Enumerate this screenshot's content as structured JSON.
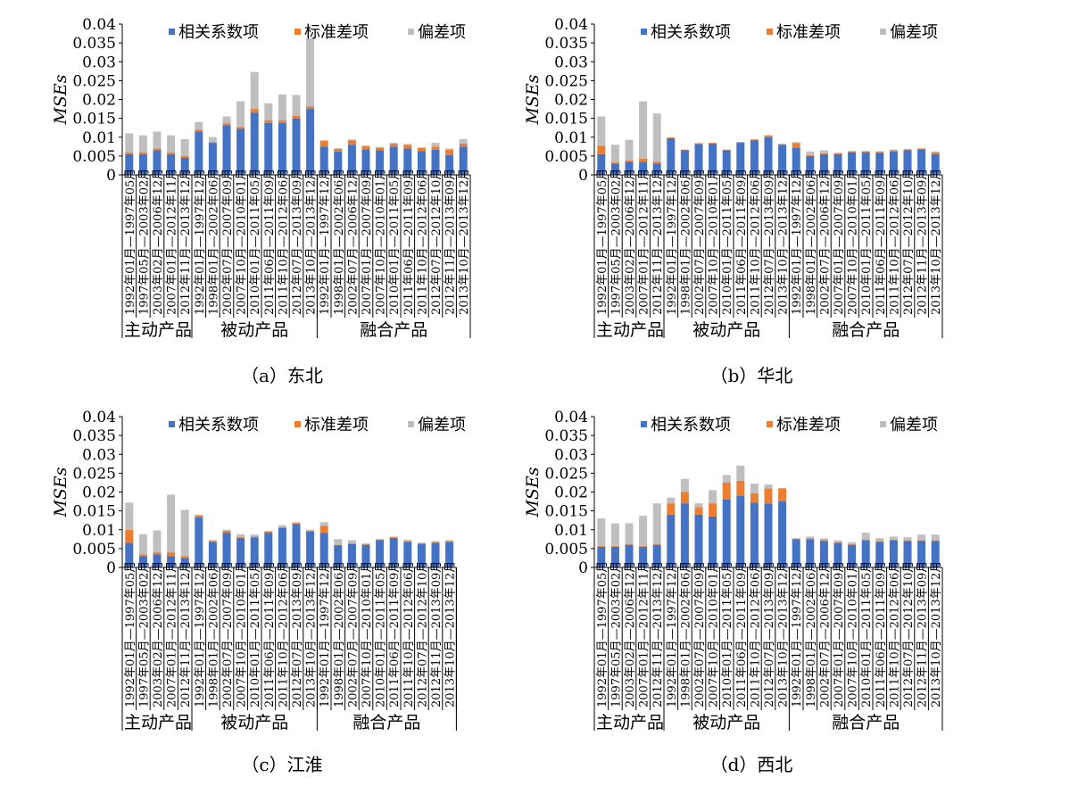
{
  "legend": [
    "相关系数项",
    "标准差项",
    "偏差项"
  ],
  "colors": {
    "corr": "#4472C4",
    "std": "#ED7D31",
    "bias": "#BFBFBF"
  },
  "y_axis_label": "MSEs",
  "y_ticks": [
    "0",
    "0.005",
    "0.01",
    "0.015",
    "0.02",
    "0.025",
    "0.03",
    "0.035",
    "0.04"
  ],
  "groups": [
    "主动产品",
    "被动产品",
    "融合产品"
  ],
  "chart_data": [
    {
      "type": "bar",
      "stacked": true,
      "caption": "（a）东北",
      "categories": [
        "1992年01月—1997年05月",
        "1997年05月—2003年02月",
        "2003年02月—2006年12月",
        "2007年01月—2012年11月",
        "2012年11月—2013年12月",
        "1992年01月—1997年12月",
        "1998年01月—2002年06月",
        "2002年07月—2007年09月",
        "2007年10月—2010年01月",
        "2010年01月—2011年05月",
        "2011年06月—2011年09月",
        "2011年10月—2012年06月",
        "2012年07月—2013年09月",
        "2013年10月—2013年12月",
        "1992年01月—1997年12月",
        "1998年01月—2002年06月",
        "2002年07月—2006年12月",
        "2007年01月—2007年09月",
        "2007年10月—2010年01月",
        "2010年01月—2011年05月",
        "2011年06月—2011年09月",
        "2011年10月—2012年06月",
        "2012年07月—2012年10月",
        "2012年11月—2013年09月",
        "2013年10月—2013年12月"
      ],
      "group_sizes": [
        5,
        9,
        11
      ],
      "ylim": [
        0,
        0.04
      ],
      "series": [
        {
          "name": "相关系数项",
          "values": [
            0.0055,
            0.0055,
            0.0065,
            0.0055,
            0.0045,
            0.0115,
            0.0085,
            0.0132,
            0.0122,
            0.0165,
            0.0138,
            0.0138,
            0.015,
            0.0175,
            0.0075,
            0.0062,
            0.008,
            0.0068,
            0.0065,
            0.0075,
            0.007,
            0.0063,
            0.0067,
            0.0052,
            0.0075
          ]
        },
        {
          "name": "标准差项",
          "values": [
            0.0005,
            0.0005,
            0.0005,
            0.0005,
            0.0005,
            0.0005,
            0.0002,
            0.0005,
            0.0005,
            0.001,
            0.0007,
            0.0007,
            0.0007,
            0.0007,
            0.0015,
            0.0007,
            0.0012,
            0.0008,
            0.0007,
            0.0008,
            0.001,
            0.0008,
            0.0008,
            0.0015,
            0.0008
          ]
        },
        {
          "name": "偏差项",
          "values": [
            0.005,
            0.0045,
            0.0045,
            0.0045,
            0.0045,
            0.002,
            0.0013,
            0.0018,
            0.0068,
            0.0098,
            0.0045,
            0.0068,
            0.0055,
            0.018,
            0.0002,
            0.0002,
            0.0002,
            0.0002,
            0.0002,
            0.0002,
            0.0002,
            0.0002,
            0.001,
            0.0003,
            0.0012
          ]
        }
      ]
    },
    {
      "type": "bar",
      "stacked": true,
      "caption": "（b）华北",
      "categories": [
        "1992年01月—1997年05月",
        "1997年05月—2003年02月",
        "2003年02月—2006年12月",
        "2007年01月—2012年11月",
        "2012年11月—2013年12月",
        "1992年01月—1997年12月",
        "1998年01月—2002年06月",
        "2002年07月—2007年09月",
        "2007年10月—2010年01月",
        "2010年01月—2011年05月",
        "2011年06月—2011年09月",
        "2011年10月—2012年06月",
        "2012年07月—2013年09月",
        "2013年10月—2013年12月",
        "1992年01月—1997年12月",
        "1998年01月—2002年06月",
        "2002年07月—2006年12月",
        "2007年01月—2007年09月",
        "2007年10月—2010年01月",
        "2010年01月—2011年05月",
        "2011年06月—2011年09月",
        "2011年10月—2012年06月",
        "2012年07月—2012年10月",
        "2012年11月—2013年09月",
        "2013年10月—2013年12月"
      ],
      "group_sizes": [
        5,
        9,
        11
      ],
      "ylim": [
        0,
        0.04
      ],
      "series": [
        {
          "name": "相关系数项",
          "values": [
            0.0055,
            0.003,
            0.0035,
            0.0035,
            0.003,
            0.0097,
            0.0065,
            0.0082,
            0.0083,
            0.0065,
            0.0085,
            0.0092,
            0.01,
            0.008,
            0.0072,
            0.005,
            0.0055,
            0.0055,
            0.006,
            0.006,
            0.0058,
            0.0062,
            0.0065,
            0.0068,
            0.0055
          ]
        },
        {
          "name": "标准差项",
          "values": [
            0.0022,
            0.0003,
            0.0003,
            0.0008,
            0.0005,
            0.0002,
            0.0002,
            0.0002,
            0.0002,
            0.0002,
            0.0002,
            0.0002,
            0.0005,
            0.0002,
            0.0012,
            0.0002,
            0.0002,
            0.0002,
            0.0002,
            0.0002,
            0.0003,
            0.0003,
            0.0003,
            0.0002,
            0.0005
          ]
        },
        {
          "name": "偏差项",
          "values": [
            0.0078,
            0.0047,
            0.0055,
            0.0152,
            0.0128,
            0.0,
            0.0,
            0.0,
            0.0,
            0.0,
            0.0,
            0.0,
            0.0,
            0.0,
            0.0003,
            0.001,
            0.0008,
            0.0002,
            0.0002,
            0.0002,
            0.0002,
            0.0002,
            0.0,
            0.0,
            0.0002
          ]
        }
      ]
    },
    {
      "type": "bar",
      "stacked": true,
      "caption": "（c）江淮",
      "categories": [
        "1992年01月—1997年05月",
        "1997年05月—2003年02月",
        "2003年02月—2006年12月",
        "2007年01月—2012年11月",
        "2012年11月—2013年12月",
        "1992年01月—1997年12月",
        "1998年01月—2002年06月",
        "2002年07月—2007年09月",
        "2007年10月—2010年01月",
        "2010年01月—2011年05月",
        "2011年06月—2011年09月",
        "2011年10月—2012年06月",
        "2012年07月—2013年09月",
        "2013年10月—2013年12月",
        "1992年01月—1997年12月",
        "1998年01月—2002年06月",
        "2002年07月—2007年09月",
        "2007年10月—2010年01月",
        "2010年01月—2011年05月",
        "2011年06月—2011年09月",
        "2011年10月—2012年06月",
        "2012年07月—2012年10月",
        "2012年11月—2013年09月",
        "2013年10月—2013年12月"
      ],
      "group_sizes": [
        5,
        9,
        10
      ],
      "ylim": [
        0,
        0.04
      ],
      "series": [
        {
          "name": "相关系数项",
          "values": [
            0.0065,
            0.003,
            0.0035,
            0.003,
            0.0025,
            0.0133,
            0.0068,
            0.0092,
            0.0078,
            0.008,
            0.0092,
            0.0105,
            0.0115,
            0.0095,
            0.0092,
            0.0058,
            0.0062,
            0.006,
            0.0072,
            0.0078,
            0.0068,
            0.0062,
            0.0065,
            0.0068
          ]
        },
        {
          "name": "标准差项",
          "values": [
            0.0035,
            0.0005,
            0.0005,
            0.001,
            0.0005,
            0.0005,
            0.0002,
            0.0005,
            0.0002,
            0.0002,
            0.0003,
            0.0002,
            0.0003,
            0.0003,
            0.0018,
            0.0002,
            0.0002,
            0.0002,
            0.0002,
            0.0002,
            0.0002,
            0.0002,
            0.0002,
            0.0002
          ]
        },
        {
          "name": "偏差项",
          "values": [
            0.0072,
            0.0053,
            0.0058,
            0.0153,
            0.0123,
            0.0002,
            0.0003,
            0.0003,
            0.0008,
            0.0005,
            0.0002,
            0.0005,
            0.0002,
            0.0002,
            0.001,
            0.0015,
            0.0008,
            0.0002,
            0.0002,
            0.0002,
            0.0003,
            0.0002,
            0.0003,
            0.0002
          ]
        }
      ]
    },
    {
      "type": "bar",
      "stacked": true,
      "caption": "（d）西北",
      "categories": [
        "1992年01月—1997年05月",
        "1997年05月—2003年02月",
        "2003年02月—2006年12月",
        "2007年01月—2012年11月",
        "2012年11月—2013年12月",
        "1992年01月—1997年12月",
        "1998年01月—2002年06月",
        "2002年07月—2007年09月",
        "2007年10月—2010年01月",
        "2010年01月—2011年05月",
        "2011年06月—2011年09月",
        "2011年10月—2012年06月",
        "2012年07月—2013年09月",
        "2013年10月—2013年12月",
        "1992年01月—1997年12月",
        "1998年01月—2002年06月",
        "2002年07月—2006年12月",
        "2007年01月—2007年09月",
        "2007年10月—2010年01月",
        "2010年01月—2011年05月",
        "2011年06月—2011年09月",
        "2011年10月—2012年06月",
        "2012年07月—2012年10月",
        "2012年11月—2013年09月",
        "2013年10月—2013年12月"
      ],
      "group_sizes": [
        5,
        9,
        11
      ],
      "ylim": [
        0,
        0.04
      ],
      "series": [
        {
          "name": "相关系数项",
          "values": [
            0.0055,
            0.0055,
            0.006,
            0.0055,
            0.006,
            0.014,
            0.017,
            0.014,
            0.0135,
            0.018,
            0.019,
            0.0172,
            0.017,
            0.0175,
            0.0075,
            0.0075,
            0.007,
            0.0065,
            0.006,
            0.0072,
            0.0068,
            0.0072,
            0.007,
            0.007,
            0.007
          ]
        },
        {
          "name": "标准差项",
          "values": [
            0.0002,
            0.0002,
            0.0002,
            0.0002,
            0.0002,
            0.003,
            0.003,
            0.002,
            0.0035,
            0.0045,
            0.004,
            0.0025,
            0.004,
            0.0035,
            0.0002,
            0.0002,
            0.0002,
            0.0002,
            0.0002,
            0.0002,
            0.0002,
            0.0002,
            0.0002,
            0.0002,
            0.0002
          ]
        },
        {
          "name": "偏差项",
          "values": [
            0.0073,
            0.006,
            0.0055,
            0.008,
            0.0108,
            0.0015,
            0.0035,
            0.001,
            0.0035,
            0.002,
            0.004,
            0.0025,
            0.001,
            0.0,
            0.0,
            0.0005,
            0.0005,
            0.0005,
            0.0005,
            0.0018,
            0.0008,
            0.0008,
            0.0008,
            0.0015,
            0.0015
          ]
        }
      ]
    }
  ]
}
